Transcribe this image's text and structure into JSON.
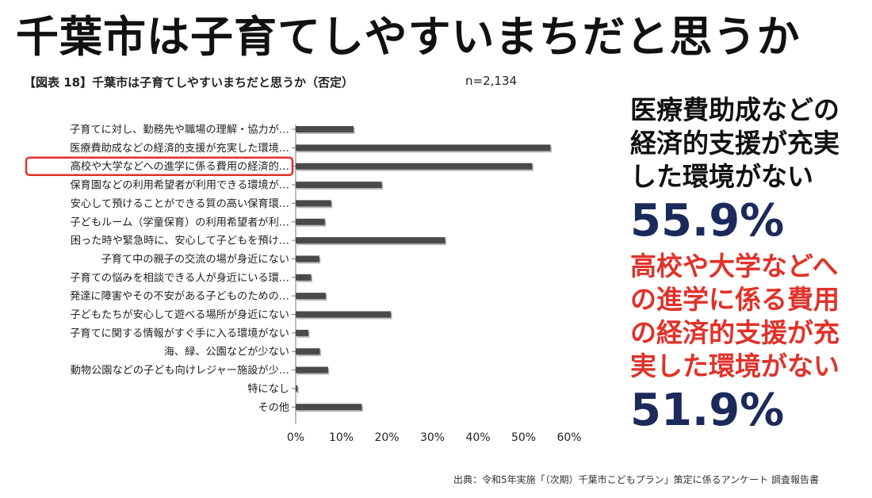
{
  "header": {
    "title": "千葉市は子育てしやすいまちだと思うか"
  },
  "chart_data": {
    "type": "bar",
    "orientation": "horizontal",
    "title": "【図表 18】千葉市は子育てしやすいまちだと思うか（否定）",
    "sample_size": "n=2,134",
    "categories": [
      "子育てに対し、勤務先や職場の理解・協力が…",
      "医療費助成などの経済的支援が充実した環境…",
      "高校や大学などへの進学に係る費用の経済的…",
      "保育園などの利用希望者が利用できる環境が…",
      "安心して預けることができる質の高い保育環…",
      "子どもルーム（学童保育）の利用希望者が利…",
      "困った時や緊急時に、安心して子どもを預け…",
      "子育て中の親子の交流の場が身近にない",
      "子育ての悩みを相談できる人が身近にいる環…",
      "発達に障害やその不安がある子どものための…",
      "子どもたちが安心して遊べる場所が身近にない",
      "子育てに関する情報がすぐ手に入る環境がない",
      "海、緑、公園などが少ない",
      "動物公園などの子ども向けレジャー施設が少…",
      "特になし",
      "その他"
    ],
    "values": [
      12.7,
      55.9,
      51.9,
      18.9,
      7.8,
      6.4,
      32.8,
      5.2,
      3.4,
      6.6,
      20.9,
      2.8,
      5.3,
      7.1,
      0.4,
      14.5
    ],
    "highlight_index": 2,
    "highlight_color": "#e0322a",
    "bar_color": "#4a4a4a",
    "xlim": [
      0,
      60
    ],
    "xticks": [
      0,
      10,
      20,
      30,
      40,
      50,
      60
    ],
    "xtick_labels": [
      "0%",
      "10%",
      "20%",
      "30%",
      "40%",
      "50%",
      "60%"
    ]
  },
  "side": {
    "block1_text": "医療費助成などの\n経済的支援が充実\nした環境がない",
    "block1_value": "55.9%",
    "block2_text": "高校や大学などへ\nの進学に係る費用\nの経済的支援が充\n実した環境がない",
    "block2_value": "51.9%"
  },
  "colors": {
    "navy": "#1b2a5a",
    "red": "#e0322a",
    "text": "#111111"
  },
  "footer": {
    "source": "出典：令和5年実施「（次期）千葉市こどもプラン」策定に係るアンケート 調査報告書"
  }
}
